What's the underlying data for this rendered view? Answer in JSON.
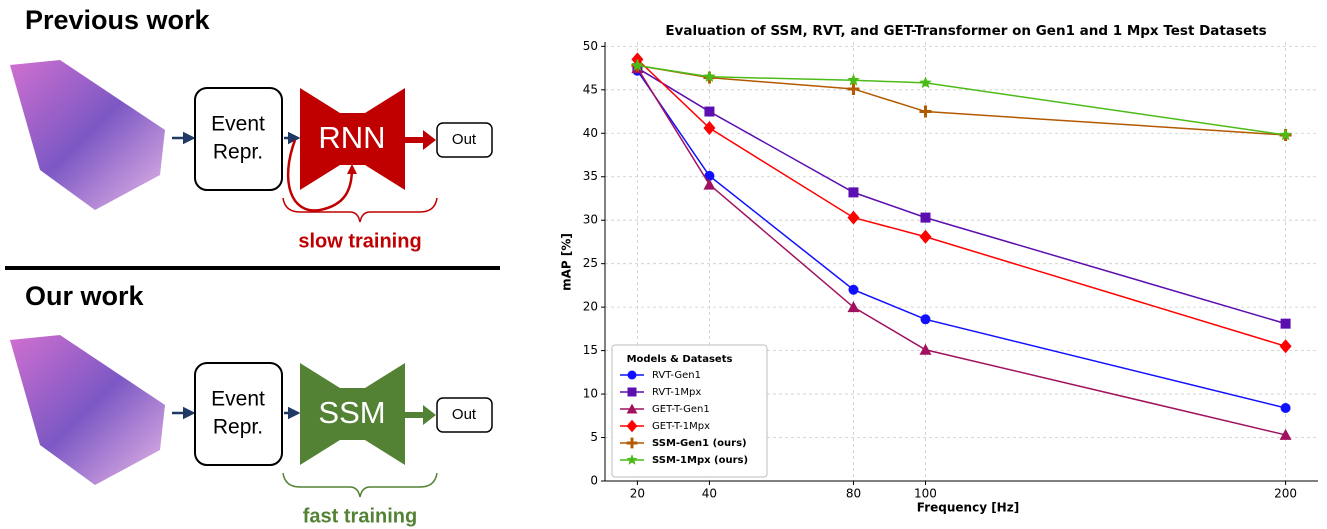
{
  "diagram": {
    "panels": [
      {
        "heading": "Previous work",
        "box": [
          "Event",
          "Repr."
        ],
        "block": "RNN",
        "out": "Out",
        "note": "slow training"
      },
      {
        "heading": "Our work",
        "box": [
          "Event",
          "Repr."
        ],
        "block": "SSM",
        "out": "Out",
        "note": "fast training"
      }
    ]
  },
  "chart_data": {
    "type": "line",
    "title": "Evaluation of SSM, RVT, and GET-Transformer on Gen1 and 1 Mpx Test Datasets",
    "x_label": "Frequency [Hz]",
    "y_label": "mAP [%]",
    "x": [
      20,
      40,
      80,
      100,
      200
    ],
    "xlim": [
      11,
      209
    ],
    "xticks": [
      20,
      40,
      80,
      100,
      200
    ],
    "ylim": [
      0,
      50.5
    ],
    "yticks": [
      0,
      5,
      10,
      15,
      20,
      25,
      30,
      35,
      40,
      45,
      50
    ],
    "grid": true,
    "legend_title": "Models & Datasets",
    "legend_position": "lower left",
    "series": [
      {
        "name": "RVT-Gen1",
        "color": "#1010ff",
        "marker": "circle",
        "values": [
          47.2,
          35.1,
          22.0,
          18.6,
          8.4
        ]
      },
      {
        "name": "RVT-1Mpx",
        "color": "#5b0fb0",
        "marker": "square",
        "values": [
          47.5,
          42.5,
          33.2,
          30.3,
          18.1
        ]
      },
      {
        "name": "GET-T-Gen1",
        "color": "#a0125e",
        "marker": "triangle",
        "values": [
          47.5,
          34.1,
          20.0,
          15.1,
          5.3
        ]
      },
      {
        "name": "GET-T-1Mpx",
        "color": "#ff0000",
        "marker": "diamond",
        "values": [
          48.5,
          40.6,
          30.3,
          28.1,
          15.5
        ]
      },
      {
        "name": "SSM-Gen1 (ours)",
        "color": "#b35a00",
        "marker": "plus",
        "values": [
          47.8,
          46.4,
          45.1,
          42.5,
          39.8
        ]
      },
      {
        "name": "SSM-1Mpx (ours)",
        "color": "#4cbb17",
        "marker": "star",
        "values": [
          47.8,
          46.5,
          46.1,
          45.8,
          39.8
        ]
      }
    ]
  }
}
